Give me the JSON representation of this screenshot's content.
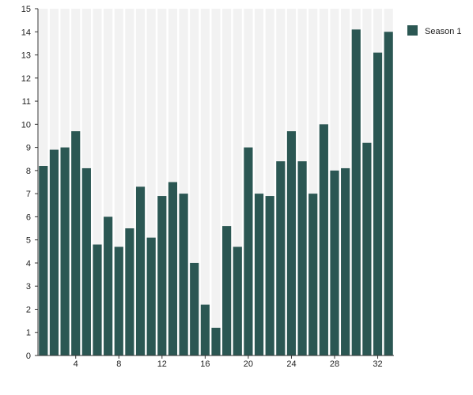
{
  "chart_data": {
    "type": "bar",
    "x": [
      1,
      2,
      3,
      4,
      5,
      6,
      7,
      8,
      9,
      10,
      11,
      12,
      13,
      14,
      15,
      16,
      17,
      18,
      19,
      20,
      21,
      22,
      23,
      24,
      25,
      26,
      27,
      28,
      29,
      30,
      31,
      32,
      33
    ],
    "x_tick_labels": [
      "4",
      "8",
      "12",
      "16",
      "20",
      "24",
      "28",
      "32"
    ],
    "x_tick_values": [
      4,
      8,
      12,
      16,
      20,
      24,
      28,
      32
    ],
    "y_ticks": [
      0,
      1,
      2,
      3,
      4,
      5,
      6,
      7,
      8,
      9,
      10,
      11,
      12,
      13,
      14,
      15
    ],
    "ylim": [
      0,
      15
    ],
    "series": [
      {
        "name": "Season 1",
        "color": "#2b5753",
        "values": [
          8.2,
          8.9,
          9.0,
          9.7,
          8.1,
          4.8,
          6.0,
          4.7,
          5.5,
          7.3,
          5.1,
          6.9,
          7.5,
          7.0,
          4.0,
          2.2,
          1.2,
          5.6,
          4.7,
          9.0,
          7.0,
          6.9,
          8.4,
          9.7,
          8.4,
          7.0,
          10.0,
          8.0,
          8.1,
          14.1,
          9.2,
          13.1,
          14.0
        ]
      }
    ],
    "title": "",
    "xlabel": "",
    "ylabel": "",
    "legend": "right",
    "grid": false,
    "band_color": "#f2f2f2"
  }
}
